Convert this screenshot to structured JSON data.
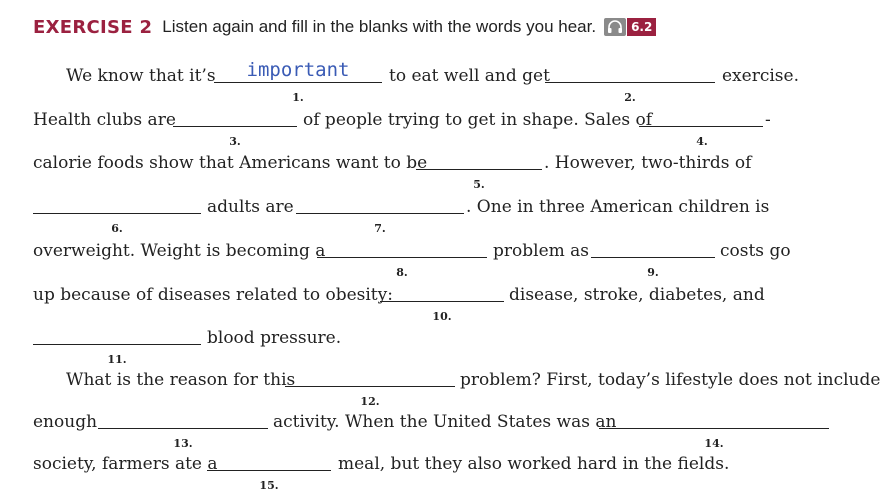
{
  "header": {
    "label": "EXERCISE 2",
    "instruction": "Listen again and fill in the blanks with the words you hear.",
    "track": "6.2",
    "icon": "headphones-icon"
  },
  "text": {
    "l1a": "We know that it’s",
    "l1b": "to eat well and get",
    "l1c": "exercise.",
    "l2a": "Health clubs are",
    "l2b": "of people trying to get in shape. Sales of",
    "l2c": "-",
    "l3a": "calorie foods show that Americans want to be",
    "l3b": ". However, two-thirds of",
    "l4a": "adults are",
    "l4b": ". One in three American children is",
    "l5a": "overweight. Weight is becoming a",
    "l5b": "problem as",
    "l5c": "costs go",
    "l6a": "up because of diseases related to obesity:",
    "l6b": "disease, stroke, diabetes, and",
    "l7a": "blood pressure.",
    "l8a": "What is the reason for this",
    "l8b": "problem? First, today’s lifestyle does not include",
    "l9a": "enough",
    "l9b": "activity. When the United States was an",
    "l10a": "society, farmers ate a",
    "l10b": "meal, but they also worked hard in the fields."
  },
  "blanks": [
    {
      "number": "1.",
      "answer": "important"
    },
    {
      "number": "2.",
      "answer": ""
    },
    {
      "number": "3.",
      "answer": ""
    },
    {
      "number": "4.",
      "answer": ""
    },
    {
      "number": "5.",
      "answer": ""
    },
    {
      "number": "6.",
      "answer": ""
    },
    {
      "number": "7.",
      "answer": ""
    },
    {
      "number": "8.",
      "answer": ""
    },
    {
      "number": "9.",
      "answer": ""
    },
    {
      "number": "10.",
      "answer": ""
    },
    {
      "number": "11.",
      "answer": ""
    },
    {
      "number": "12.",
      "answer": ""
    },
    {
      "number": "13.",
      "answer": ""
    },
    {
      "number": "14.",
      "answer": ""
    },
    {
      "number": "15.",
      "answer": ""
    }
  ],
  "colors": {
    "accent": "#9b2140",
    "answer_ink": "#3a5bb5"
  }
}
